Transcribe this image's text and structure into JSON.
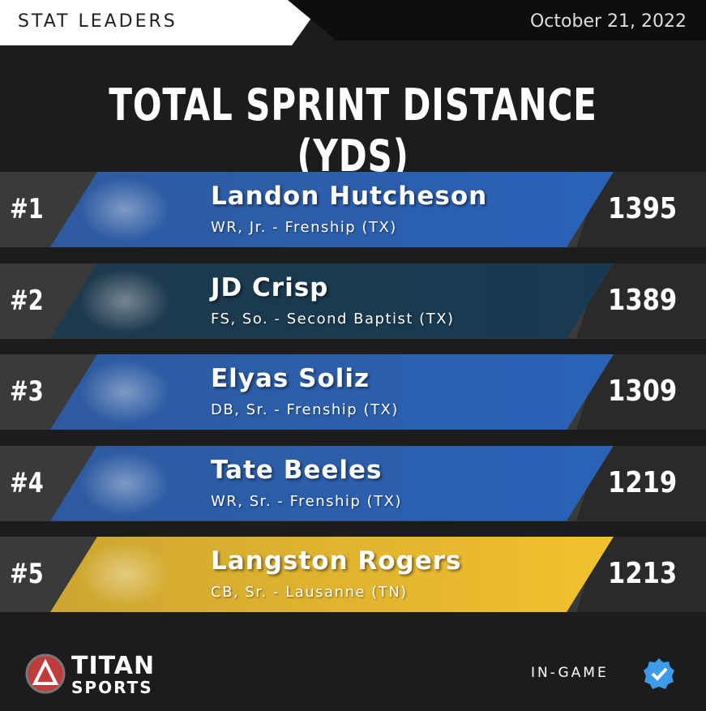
{
  "header": {
    "label": "STAT LEADERS",
    "date": "October 21, 2022"
  },
  "title": "TOTAL SPRINT DISTANCE (YDS)",
  "rows": [
    {
      "rank": "#1",
      "name": "Landon Hutcheson",
      "detail": "WR, Jr. - Frenship (TX)",
      "value": 1395,
      "color": "#2a62b8"
    },
    {
      "rank": "#2",
      "name": "JD Crisp",
      "detail": "FS, So. - Second Baptist (TX)",
      "value": 1389,
      "color": "#173a52"
    },
    {
      "rank": "#3",
      "name": "Elyas Soliz",
      "detail": "DB, Sr. - Frenship (TX)",
      "value": 1309,
      "color": "#2a62b8"
    },
    {
      "rank": "#4",
      "name": "Tate Beeles",
      "detail": "WR, Sr. - Frenship (TX)",
      "value": 1219,
      "color": "#2a62b8"
    },
    {
      "rank": "#5",
      "name": "Langston Rogers",
      "detail": "CB, Sr. - Lausanne (TN)",
      "value": 1213,
      "color": "#f2c12e"
    }
  ],
  "footer": {
    "brand_top": "TITAN",
    "brand_bottom": "SPORTS",
    "badge": "IN-GAME"
  }
}
